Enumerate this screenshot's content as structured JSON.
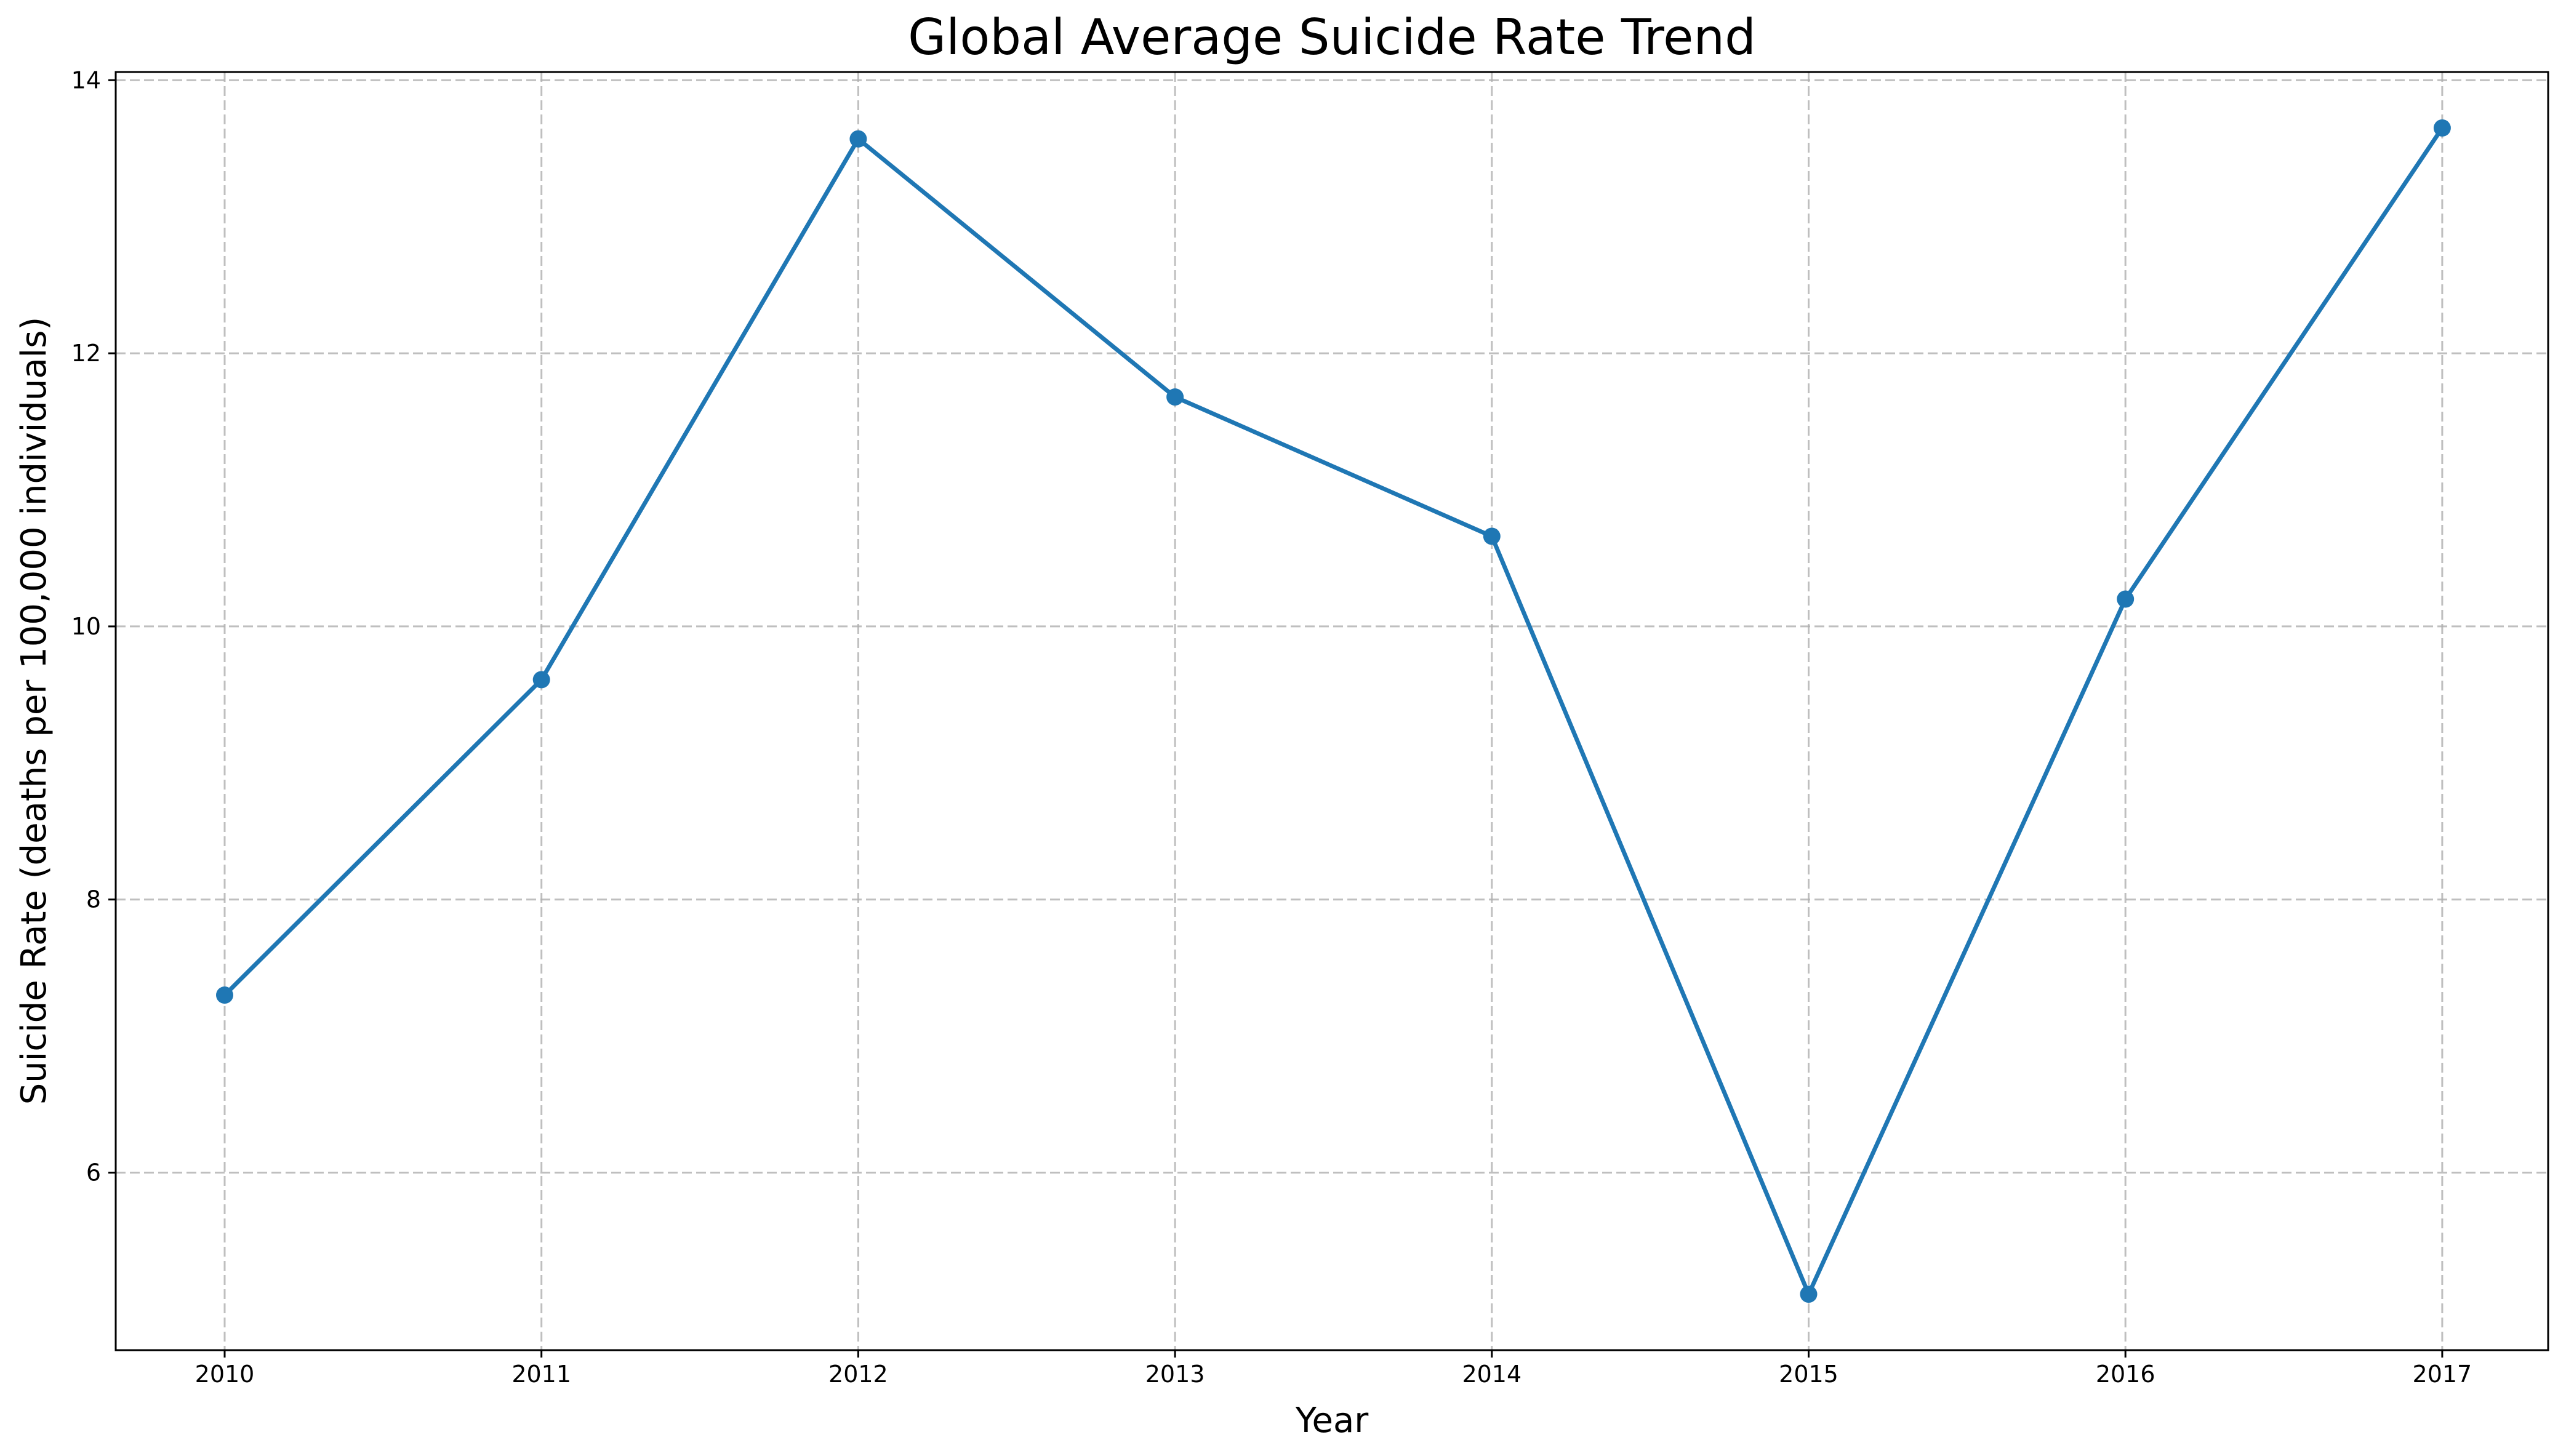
{
  "chart_data": {
    "type": "line",
    "title": "Global Average Suicide Rate Trend",
    "xlabel": "Year",
    "ylabel": "Suicide Rate (deaths per 100,000 individuals)",
    "x": [
      "2010",
      "2011",
      "2012",
      "2013",
      "2014",
      "2015",
      "2016",
      "2017"
    ],
    "series": [
      {
        "values": [
          7.3,
          9.61,
          13.57,
          11.68,
          10.66,
          5.11,
          10.2,
          13.65
        ],
        "color": "#1f77b4",
        "marker": "circle"
      }
    ],
    "y_ticks": [
      "6",
      "8",
      "10",
      "12",
      "14"
    ],
    "y_tick_values": [
      6,
      8,
      10,
      12,
      14
    ],
    "ylim": [
      4.7,
      14.06
    ],
    "grid": true,
    "grid_style": "dashed",
    "legend": "none"
  }
}
